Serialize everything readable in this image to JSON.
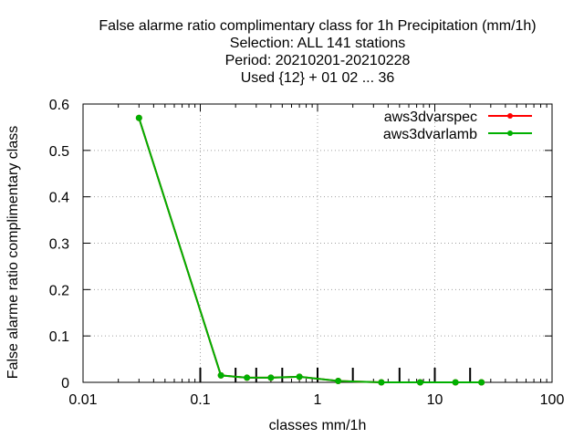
{
  "chart_data": {
    "type": "line",
    "title_lines": [
      "False alarme ratio complimentary class  for 1h Precipitation (mm/1h)",
      "Selection: ALL    141 stations",
      "Period: 20210201-20210228",
      "Used {12} + 01 02 ... 36"
    ],
    "xlabel": "classes mm/1h",
    "ylabel": "False alarme ratio complimentary class",
    "xscale": "log",
    "xlim": [
      0.01,
      100
    ],
    "ylim": [
      0,
      0.6
    ],
    "x_ticks": [
      0.01,
      0.1,
      1,
      10,
      100
    ],
    "x_tick_labels": [
      "0.01",
      "0.1",
      "1",
      "10",
      "100"
    ],
    "y_ticks": [
      0,
      0.1,
      0.2,
      0.3,
      0.4,
      0.5,
      0.6
    ],
    "y_tick_labels": [
      "0",
      "0.1",
      "0.2",
      "0.3",
      "0.4",
      "0.5",
      "0.6"
    ],
    "grid": true,
    "legend_position": "top-right",
    "class_thresholds": [
      0.1,
      0.2,
      0.3,
      0.5,
      1,
      2,
      5,
      10,
      20
    ],
    "series": [
      {
        "name": "aws3dvarspec",
        "color": "#ff0000",
        "x": [
          0.03,
          0.15,
          0.25,
          0.4,
          0.7,
          1.5,
          3.5,
          7.5,
          15,
          25
        ],
        "y": [
          0.57,
          0.015,
          0.01,
          0.01,
          0.012,
          0.003,
          0.0,
          0.0,
          0.0,
          0.0
        ]
      },
      {
        "name": "aws3dvarlamb",
        "color": "#00b000",
        "x": [
          0.03,
          0.15,
          0.25,
          0.4,
          0.7,
          1.5,
          3.5,
          7.5,
          15,
          25
        ],
        "y": [
          0.57,
          0.015,
          0.01,
          0.01,
          0.012,
          0.003,
          0.0,
          0.0,
          0.0,
          0.0
        ]
      }
    ]
  }
}
